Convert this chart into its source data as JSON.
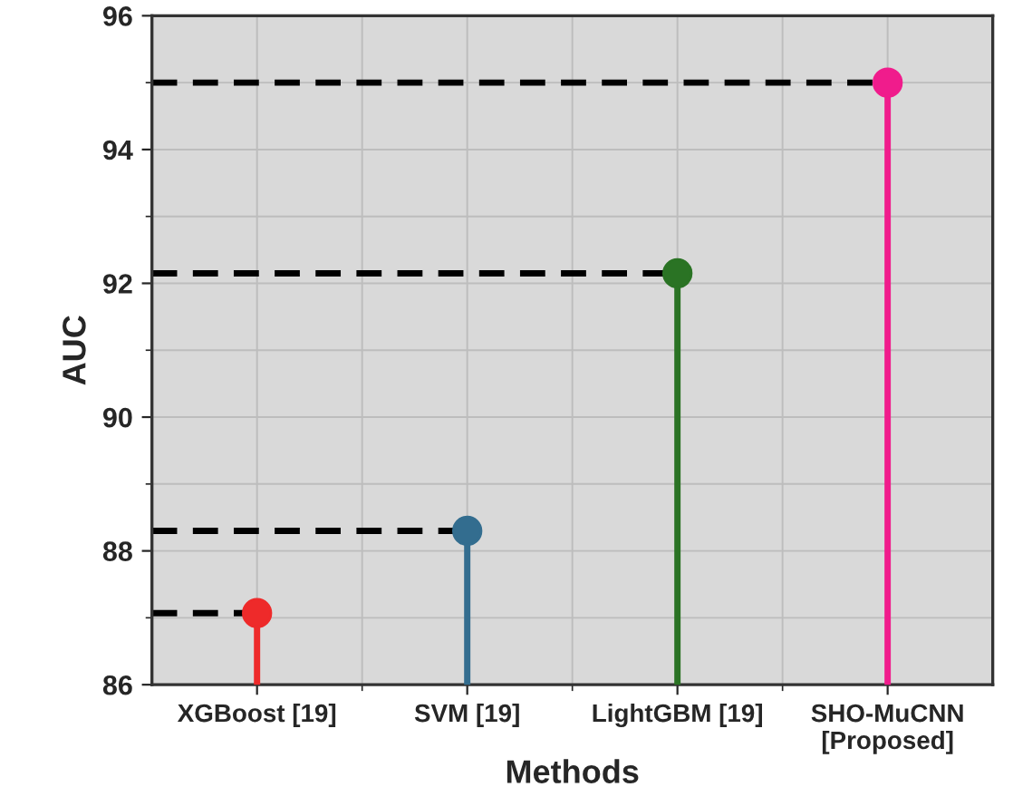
{
  "chart_data": {
    "type": "lollipop",
    "xlabel": "Methods",
    "ylabel": "AUC",
    "categories": [
      "XGBoost [19]",
      "SVM [19]",
      "LightGBM [19]",
      "SHO-MuCNN\n[Proposed]"
    ],
    "values": [
      87.07,
      88.3,
      92.15,
      95.0
    ],
    "colors": [
      "#ee2a2a",
      "#336d8f",
      "#2a7324",
      "#f01c8c"
    ],
    "ylim": [
      86,
      96
    ],
    "yticks": [
      86,
      88,
      90,
      92,
      94,
      96
    ],
    "grid": true,
    "marker": "circle",
    "ref_lines": [
      {
        "axis": "y",
        "value": 87.07,
        "color": "#000000",
        "line_style": "dashed"
      },
      {
        "axis": "y",
        "value": 88.3,
        "color": "#000000",
        "line_style": "dashed"
      },
      {
        "axis": "y",
        "value": 92.15,
        "color": "#000000",
        "line_style": "dashed"
      },
      {
        "axis": "y",
        "value": 95.0,
        "color": "#000000",
        "line_style": "dashed"
      }
    ]
  }
}
